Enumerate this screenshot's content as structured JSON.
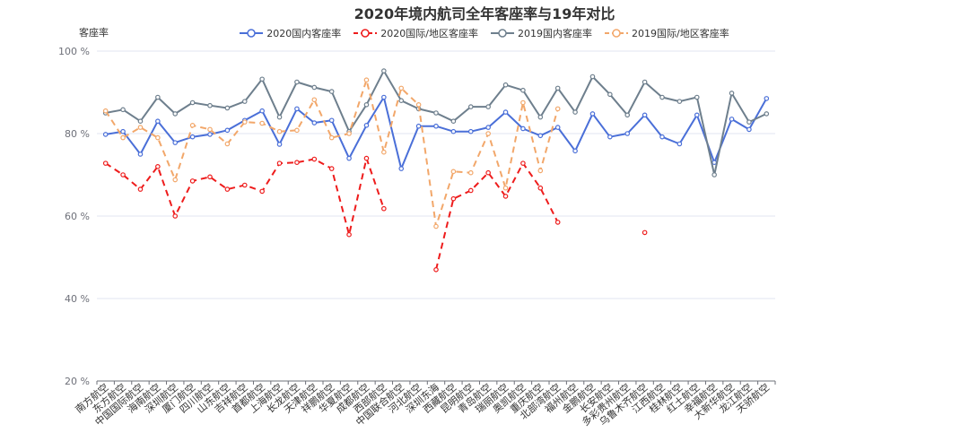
{
  "chart_data": {
    "type": "line",
    "title": "2020年境内航司全年客座率与19年对比",
    "ylabel": "客座率",
    "ylim": [
      20,
      100
    ],
    "yticks": [
      "20 %",
      "40 %",
      "60 %",
      "80 %",
      "100 %"
    ],
    "grid": true,
    "legend_position": "top",
    "categories": [
      "南方航空",
      "东方航空",
      "中国国际航空",
      "海南航空",
      "深圳航空",
      "厦门航空",
      "四川航空",
      "山东航空",
      "吉祥航空",
      "首都航空",
      "上海航空",
      "长龙航空",
      "天津航空",
      "祥鹏航空",
      "华夏航空",
      "成都航空",
      "西部航空",
      "中国联合航空",
      "河北航空",
      "深圳东海",
      "西藏航空",
      "昆明航空",
      "青岛航空",
      "瑞丽航空",
      "奥凯航空",
      "重庆航空",
      "北部湾航空",
      "福州航空",
      "金鹏航空",
      "长安航空",
      "多彩贵州航空",
      "乌鲁木齐航空",
      "江西航空",
      "桂林航空",
      "红土航空",
      "幸福航空",
      "大新华航空",
      "龙江航空",
      "天骄航空"
    ],
    "series": [
      {
        "name": "2020国内客座率",
        "color": "#4a6fd8",
        "dashed": false,
        "values": [
          79.8,
          80.5,
          75.0,
          83.0,
          77.8,
          79.2,
          79.8,
          80.8,
          83.2,
          85.5,
          77.4,
          86.0,
          82.6,
          83.2,
          74.0,
          82.0,
          88.8,
          71.5,
          81.8,
          81.8,
          80.5,
          80.5,
          81.5,
          85.2,
          81.2,
          79.5,
          81.5,
          75.8,
          84.8,
          79.2,
          80.0,
          84.5,
          79.2,
          77.5,
          84.5,
          73.0,
          83.5,
          81.0,
          88.5
        ]
      },
      {
        "name": "2020国际/地区客座率",
        "color": "#ee1c1c",
        "dashed": true,
        "values": [
          72.8,
          70.0,
          66.5,
          72.0,
          60.0,
          68.5,
          69.5,
          66.5,
          67.5,
          66.0,
          72.8,
          73.0,
          73.8,
          71.5,
          55.5,
          74.0,
          61.8,
          null,
          null,
          47.0,
          64.2,
          66.2,
          70.5,
          64.8,
          72.8,
          66.8,
          58.5,
          null,
          null,
          null,
          null,
          56.0,
          null,
          null,
          null,
          null,
          null,
          null,
          null
        ]
      },
      {
        "name": "2019国内客座率",
        "color": "#6e7f8d",
        "dashed": false,
        "values": [
          85.0,
          85.8,
          83.0,
          88.8,
          84.8,
          87.5,
          86.8,
          86.2,
          87.8,
          93.2,
          84.0,
          92.5,
          91.2,
          90.2,
          80.5,
          87.0,
          95.2,
          88.0,
          86.0,
          85.0,
          83.0,
          86.5,
          86.5,
          91.8,
          90.5,
          84.0,
          91.0,
          85.2,
          93.8,
          89.5,
          84.5,
          92.5,
          88.8,
          87.8,
          88.8,
          70.0,
          89.8,
          82.8,
          84.8
        ]
      },
      {
        "name": "2019国际/地区客座率",
        "color": "#f2a76a",
        "dashed": true,
        "values": [
          85.5,
          79.0,
          81.5,
          79.0,
          68.8,
          82.0,
          81.0,
          77.5,
          82.8,
          82.5,
          80.5,
          80.8,
          88.2,
          79.0,
          80.0,
          93.0,
          75.5,
          91.0,
          87.0,
          57.5,
          70.8,
          70.5,
          80.0,
          66.8,
          87.5,
          71.0,
          86.0,
          null,
          null,
          null,
          null,
          null,
          null,
          null,
          null,
          null,
          null,
          null,
          null
        ]
      }
    ]
  }
}
